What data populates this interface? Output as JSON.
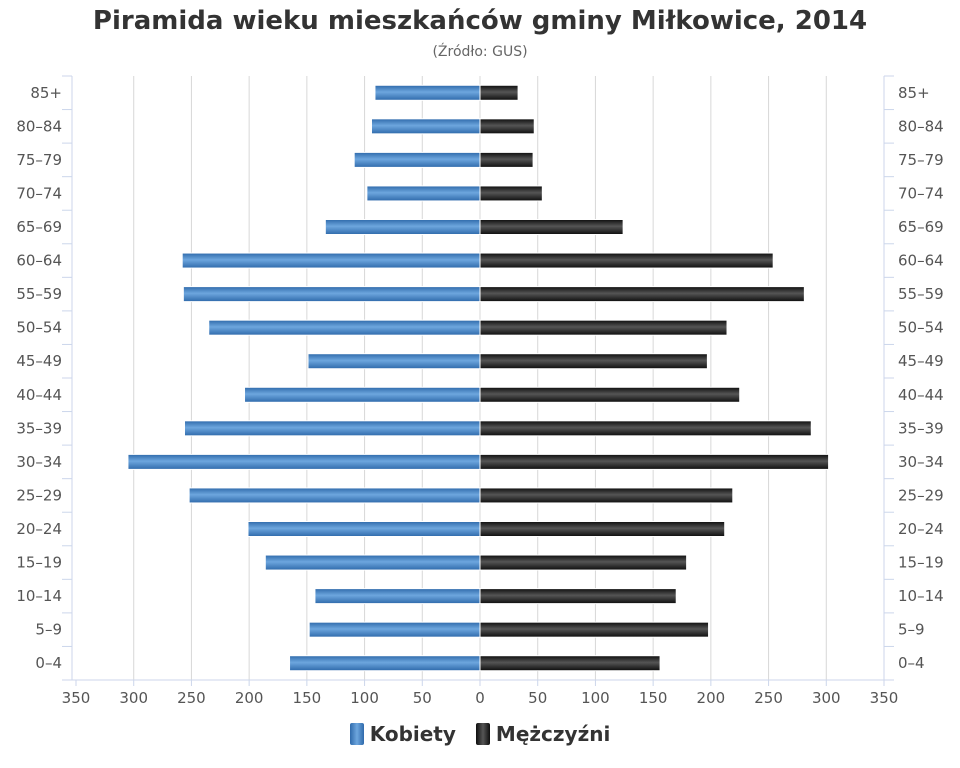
{
  "title": "Piramida wieku mieszkańców gminy Miłkowice, 2014",
  "subtitle": "(Źródło: GUS)",
  "colors": {
    "women": "#3f7ec2",
    "men": "#1c1c1c",
    "grid": "#d8d8d8",
    "axis": "#ccd6eb",
    "tick_text": "#555555"
  },
  "legend": {
    "women_label": "Kobiety",
    "men_label": "Mężczyźni"
  },
  "chart_data": {
    "type": "bar",
    "title": "Piramida wieku mieszkańców gminy Miłkowice, 2014",
    "subtitle": "(Źródło: GUS)",
    "categories": [
      "85+",
      "80–84",
      "75–79",
      "70–74",
      "65–69",
      "60–64",
      "55–59",
      "50–54",
      "45–49",
      "40–44",
      "35–39",
      "30–34",
      "25–29",
      "20–24",
      "15–19",
      "10–14",
      "5–9",
      "0–4"
    ],
    "series": [
      {
        "name": "Kobiety",
        "side": "left",
        "values": [
          91,
          94,
          109,
          98,
          134,
          258,
          257,
          235,
          149,
          204,
          256,
          305,
          252,
          201,
          186,
          143,
          148,
          165
        ]
      },
      {
        "name": "Mężczyźni",
        "side": "right",
        "values": [
          33,
          47,
          46,
          54,
          124,
          254,
          281,
          214,
          197,
          225,
          287,
          302,
          219,
          212,
          179,
          170,
          198,
          156
        ]
      }
    ],
    "x_ticks": [
      "350",
      "300",
      "250",
      "200",
      "150",
      "100",
      "50",
      "0",
      "50",
      "100",
      "150",
      "200",
      "250",
      "300",
      "350"
    ],
    "xlim": [
      -350,
      350
    ],
    "grid": true,
    "legend_position": "bottom-center"
  }
}
